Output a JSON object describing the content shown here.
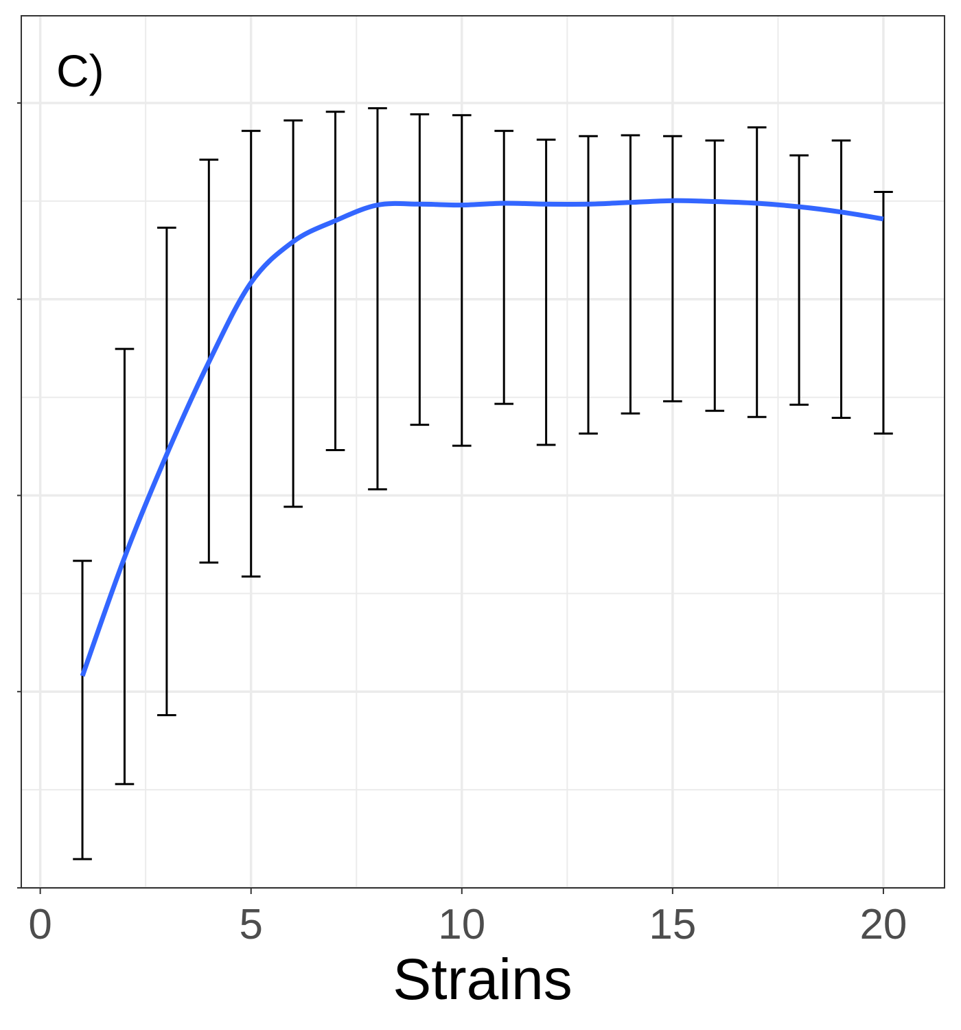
{
  "chart_data": {
    "type": "line",
    "panel_label": "C)",
    "xlabel": "Strains",
    "ylabel": "",
    "xlim": [
      -0.45,
      21.45
    ],
    "ylim": [
      0,
      1
    ],
    "x_ticks": [
      0,
      5,
      10,
      15,
      20
    ],
    "x_tick_labels": [
      "0",
      "5",
      "10",
      "15",
      "20"
    ],
    "y_ticks_major": [
      0.0,
      0.225,
      0.45,
      0.675,
      0.9
    ],
    "y_ticks_minor": [
      0.1125,
      0.3375,
      0.5625,
      0.7875
    ],
    "y_tick_labels_visible": false,
    "grid": true,
    "series": [
      {
        "type": "smooth-line",
        "color": "#3366FF",
        "x": [
          1,
          2,
          3,
          4,
          5,
          6,
          7,
          8,
          9,
          10,
          11,
          12,
          13,
          14,
          15,
          16,
          17,
          18,
          19,
          20
        ],
        "y": [
          0.243,
          0.379,
          0.497,
          0.603,
          0.694,
          0.741,
          0.765,
          0.783,
          0.784,
          0.783,
          0.785,
          0.784,
          0.784,
          0.786,
          0.788,
          0.787,
          0.785,
          0.781,
          0.775,
          0.767
        ]
      },
      {
        "type": "errorbar",
        "color": "#000000",
        "x": [
          1,
          2,
          3,
          4,
          5,
          6,
          7,
          8,
          9,
          10,
          11,
          12,
          13,
          14,
          15,
          16,
          17,
          18,
          19,
          20
        ],
        "ymin": [
          0.033,
          0.119,
          0.198,
          0.373,
          0.357,
          0.437,
          0.502,
          0.457,
          0.531,
          0.507,
          0.555,
          0.508,
          0.521,
          0.544,
          0.558,
          0.547,
          0.54,
          0.554,
          0.539,
          0.521
        ],
        "ymax": [
          0.375,
          0.618,
          0.757,
          0.835,
          0.868,
          0.88,
          0.89,
          0.894,
          0.887,
          0.886,
          0.868,
          0.858,
          0.862,
          0.863,
          0.862,
          0.857,
          0.872,
          0.84,
          0.857,
          0.798
        ]
      }
    ]
  }
}
